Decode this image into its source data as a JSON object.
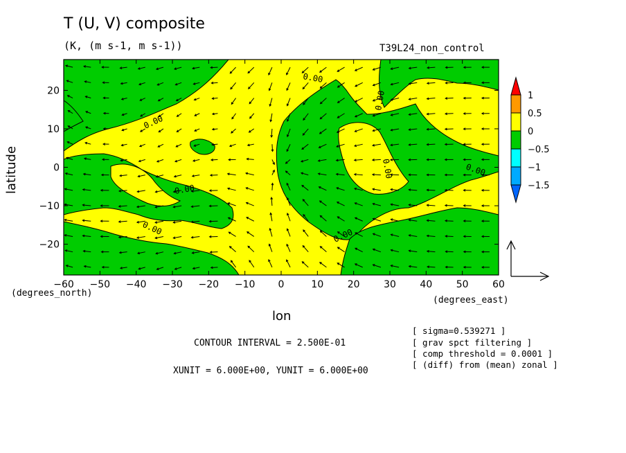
{
  "header": {
    "title": "T (U, V) composite",
    "subtitle": "(K, (m s-1, m s-1))",
    "run_name": "T39L24_non_control"
  },
  "axes": {
    "xlabel": "lon",
    "ylabel": "latitude",
    "x_unit_label": "(degrees_east)",
    "y_unit_label": "(degrees_north)"
  },
  "annotations": {
    "contour_interval": "CONTOUR INTERVAL = 2.500E-01",
    "units": "XUNIT = 6.000E+00, YUNIT = 6.000E+00",
    "notes": [
      "[ sigma=0.539271 ]",
      "[ grav spct filtering ]",
      "[ comp threshold = 0.0001 ]",
      "[ (diff) from (mean) zonal ]"
    ]
  },
  "colors": {
    "yellow": "#ffff00",
    "green": "#00cc00",
    "cyan": "#00ffff",
    "sky": "#00aaff",
    "blue": "#0066ff",
    "orange": "#ff9900",
    "red": "#ff0000"
  },
  "chart_data": {
    "type": "heatmap",
    "title": "T (U, V) composite",
    "subtitle": "(K, (m s-1, m s-1))",
    "xlabel": "lon",
    "ylabel": "latitude",
    "xlim": [
      -60,
      60
    ],
    "ylim": [
      -28,
      28
    ],
    "x_ticks": [
      -60,
      -50,
      -40,
      -30,
      -20,
      -10,
      0,
      10,
      20,
      30,
      40,
      50,
      60
    ],
    "y_ticks": [
      -20,
      -10,
      0,
      10,
      20
    ],
    "contour_interval": 0.25,
    "contour_label": "0.00",
    "colorbar": {
      "labels": [
        "1",
        "0.5",
        "0",
        "-0.5",
        "-1",
        "-1.5"
      ],
      "bins": [
        {
          "range": [
            1.0,
            null
          ],
          "color": "#ff0000"
        },
        {
          "range": [
            0.5,
            1.0
          ],
          "color": "#ff9900"
        },
        {
          "range": [
            0.0,
            0.5
          ],
          "color": "#ffff00"
        },
        {
          "range": [
            -0.5,
            0.0
          ],
          "color": "#00cc00"
        },
        {
          "range": [
            -1.0,
            -0.5
          ],
          "color": "#00ffff"
        },
        {
          "range": [
            -1.5,
            -1.0
          ],
          "color": "#00aaff"
        },
        {
          "range": [
            null,
            -1.5
          ],
          "color": "#0066ff"
        }
      ]
    },
    "vector_field": {
      "type": "quiver",
      "field": "(U, V)",
      "x_step_deg": 5,
      "y_step_deg": 4,
      "reference_unit": {
        "x": 6.0,
        "y": 6.0
      }
    }
  }
}
